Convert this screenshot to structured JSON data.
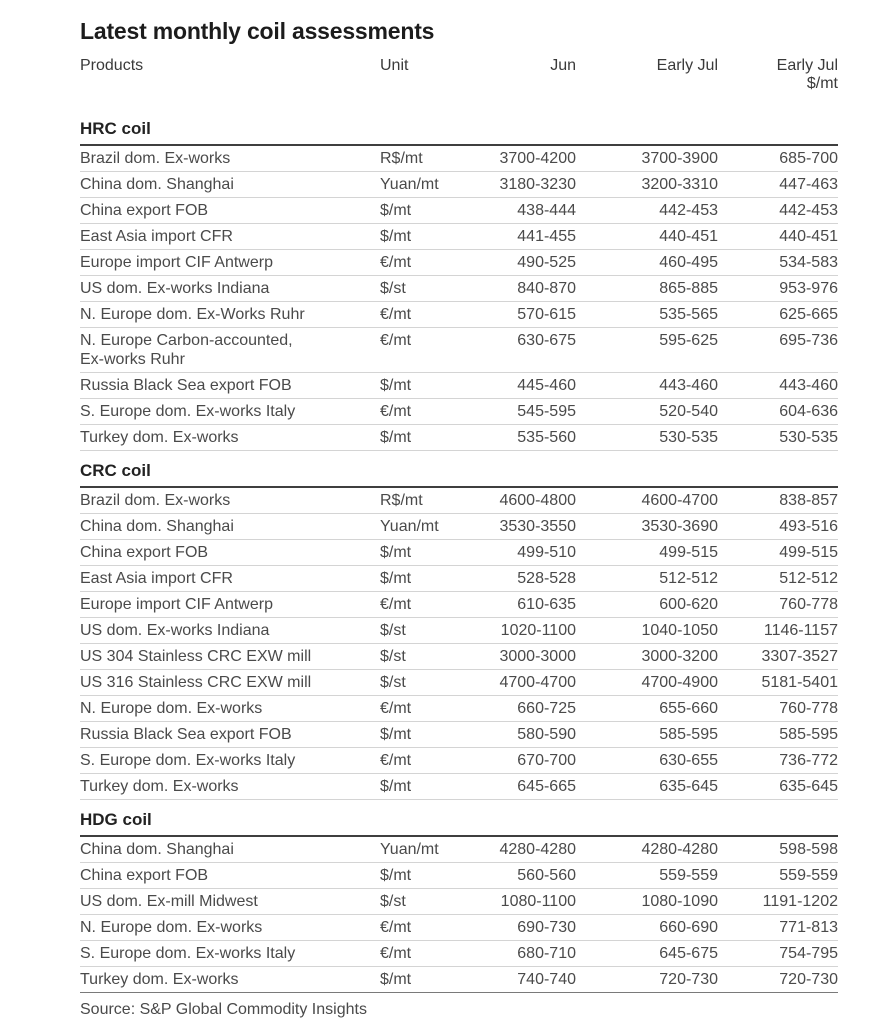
{
  "page": {
    "title": "Latest monthly coil assessments",
    "source": "Source: S&P Global Commodity Insights"
  },
  "header": {
    "products": "Products",
    "unit": "Unit",
    "jun": "Jun",
    "early_jul": "Early Jul",
    "early_jul_usd_line1": "Early Jul",
    "early_jul_usd_line2": "$/mt"
  },
  "chart_data": {
    "type": "table",
    "title": "Latest monthly coil assessments",
    "columns": [
      "Products",
      "Unit",
      "Jun",
      "Early Jul",
      "Early Jul $/mt"
    ],
    "sections": [
      {
        "name": "HRC coil",
        "rows": [
          {
            "product": "Brazil dom. Ex-works",
            "unit": "R$/mt",
            "jun": "3700-4200",
            "early_jul": "3700-3900",
            "early_jul_usd": "685-700"
          },
          {
            "product": "China dom. Shanghai",
            "unit": "Yuan/mt",
            "jun": "3180-3230",
            "early_jul": "3200-3310",
            "early_jul_usd": "447-463"
          },
          {
            "product": "China export FOB",
            "unit": "$/mt",
            "jun": "438-444",
            "early_jul": "442-453",
            "early_jul_usd": "442-453"
          },
          {
            "product": "East Asia import CFR",
            "unit": "$/mt",
            "jun": "441-455",
            "early_jul": "440-451",
            "early_jul_usd": "440-451"
          },
          {
            "product": "Europe import CIF Antwerp",
            "unit": "€/mt",
            "jun": "490-525",
            "early_jul": "460-495",
            "early_jul_usd": "534-583"
          },
          {
            "product": "US dom. Ex-works Indiana",
            "unit": "$/st",
            "jun": "840-870",
            "early_jul": "865-885",
            "early_jul_usd": "953-976"
          },
          {
            "product": "N. Europe dom. Ex-Works Ruhr",
            "unit": "€/mt",
            "jun": "570-615",
            "early_jul": "535-565",
            "early_jul_usd": "625-665"
          },
          {
            "product": "N. Europe Carbon-accounted,",
            "product_cont": "Ex-works Ruhr",
            "unit": "€/mt",
            "jun": "630-675",
            "early_jul": "595-625",
            "early_jul_usd": "695-736"
          },
          {
            "product": "Russia Black Sea export FOB",
            "unit": "$/mt",
            "jun": "445-460",
            "early_jul": "443-460",
            "early_jul_usd": "443-460"
          },
          {
            "product": "S. Europe dom. Ex-works Italy",
            "unit": "€/mt",
            "jun": "545-595",
            "early_jul": "520-540",
            "early_jul_usd": "604-636"
          },
          {
            "product": "Turkey dom. Ex-works",
            "unit": "$/mt",
            "jun": "535-560",
            "early_jul": "530-535",
            "early_jul_usd": "530-535"
          }
        ]
      },
      {
        "name": "CRC coil",
        "rows": [
          {
            "product": "Brazil dom. Ex-works",
            "unit": "R$/mt",
            "jun": "4600-4800",
            "early_jul": "4600-4700",
            "early_jul_usd": "838-857"
          },
          {
            "product": "China dom. Shanghai",
            "unit": "Yuan/mt",
            "jun": "3530-3550",
            "early_jul": "3530-3690",
            "early_jul_usd": "493-516"
          },
          {
            "product": "China export FOB",
            "unit": "$/mt",
            "jun": "499-510",
            "early_jul": "499-515",
            "early_jul_usd": "499-515"
          },
          {
            "product": "East Asia import CFR",
            "unit": "$/mt",
            "jun": "528-528",
            "early_jul": "512-512",
            "early_jul_usd": "512-512"
          },
          {
            "product": "Europe import CIF Antwerp",
            "unit": "€/mt",
            "jun": "610-635",
            "early_jul": "600-620",
            "early_jul_usd": "760-778"
          },
          {
            "product": "US dom. Ex-works Indiana",
            "unit": "$/st",
            "jun": "1020-1100",
            "early_jul": "1040-1050",
            "early_jul_usd": "1146-1157"
          },
          {
            "product": "US 304 Stainless CRC EXW mill",
            "unit": "$/st",
            "jun": "3000-3000",
            "early_jul": "3000-3200",
            "early_jul_usd": "3307-3527"
          },
          {
            "product": "US 316 Stainless CRC EXW mill",
            "unit": "$/st",
            "jun": "4700-4700",
            "early_jul": "4700-4900",
            "early_jul_usd": "5181-5401"
          },
          {
            "product": "N. Europe dom. Ex-works",
            "unit": "€/mt",
            "jun": "660-725",
            "early_jul": "655-660",
            "early_jul_usd": "760-778"
          },
          {
            "product": "Russia Black Sea export FOB",
            "unit": "$/mt",
            "jun": "580-590",
            "early_jul": "585-595",
            "early_jul_usd": "585-595"
          },
          {
            "product": "S. Europe dom. Ex-works Italy",
            "unit": "€/mt",
            "jun": "670-700",
            "early_jul": "630-655",
            "early_jul_usd": "736-772"
          },
          {
            "product": "Turkey dom. Ex-works",
            "unit": "$/mt",
            "jun": "645-665",
            "early_jul": "635-645",
            "early_jul_usd": "635-645"
          }
        ]
      },
      {
        "name": "HDG coil",
        "rows": [
          {
            "product": "China dom. Shanghai",
            "unit": "Yuan/mt",
            "jun": "4280-4280",
            "early_jul": "4280-4280",
            "early_jul_usd": "598-598"
          },
          {
            "product": "China export FOB",
            "unit": "$/mt",
            "jun": "560-560",
            "early_jul": "559-559",
            "early_jul_usd": "559-559"
          },
          {
            "product": "US dom. Ex-mill Midwest",
            "unit": "$/st",
            "jun": "1080-1100",
            "early_jul": "1080-1090",
            "early_jul_usd": "1191-1202"
          },
          {
            "product": "N. Europe dom. Ex-works",
            "unit": "€/mt",
            "jun": "690-730",
            "early_jul": "660-690",
            "early_jul_usd": "771-813"
          },
          {
            "product": "S. Europe dom. Ex-works Italy",
            "unit": "€/mt",
            "jun": "680-710",
            "early_jul": "645-675",
            "early_jul_usd": "754-795"
          },
          {
            "product": "Turkey dom. Ex-works",
            "unit": "$/mt",
            "jun": "740-740",
            "early_jul": "720-730",
            "early_jul_usd": "720-730"
          }
        ]
      }
    ]
  }
}
